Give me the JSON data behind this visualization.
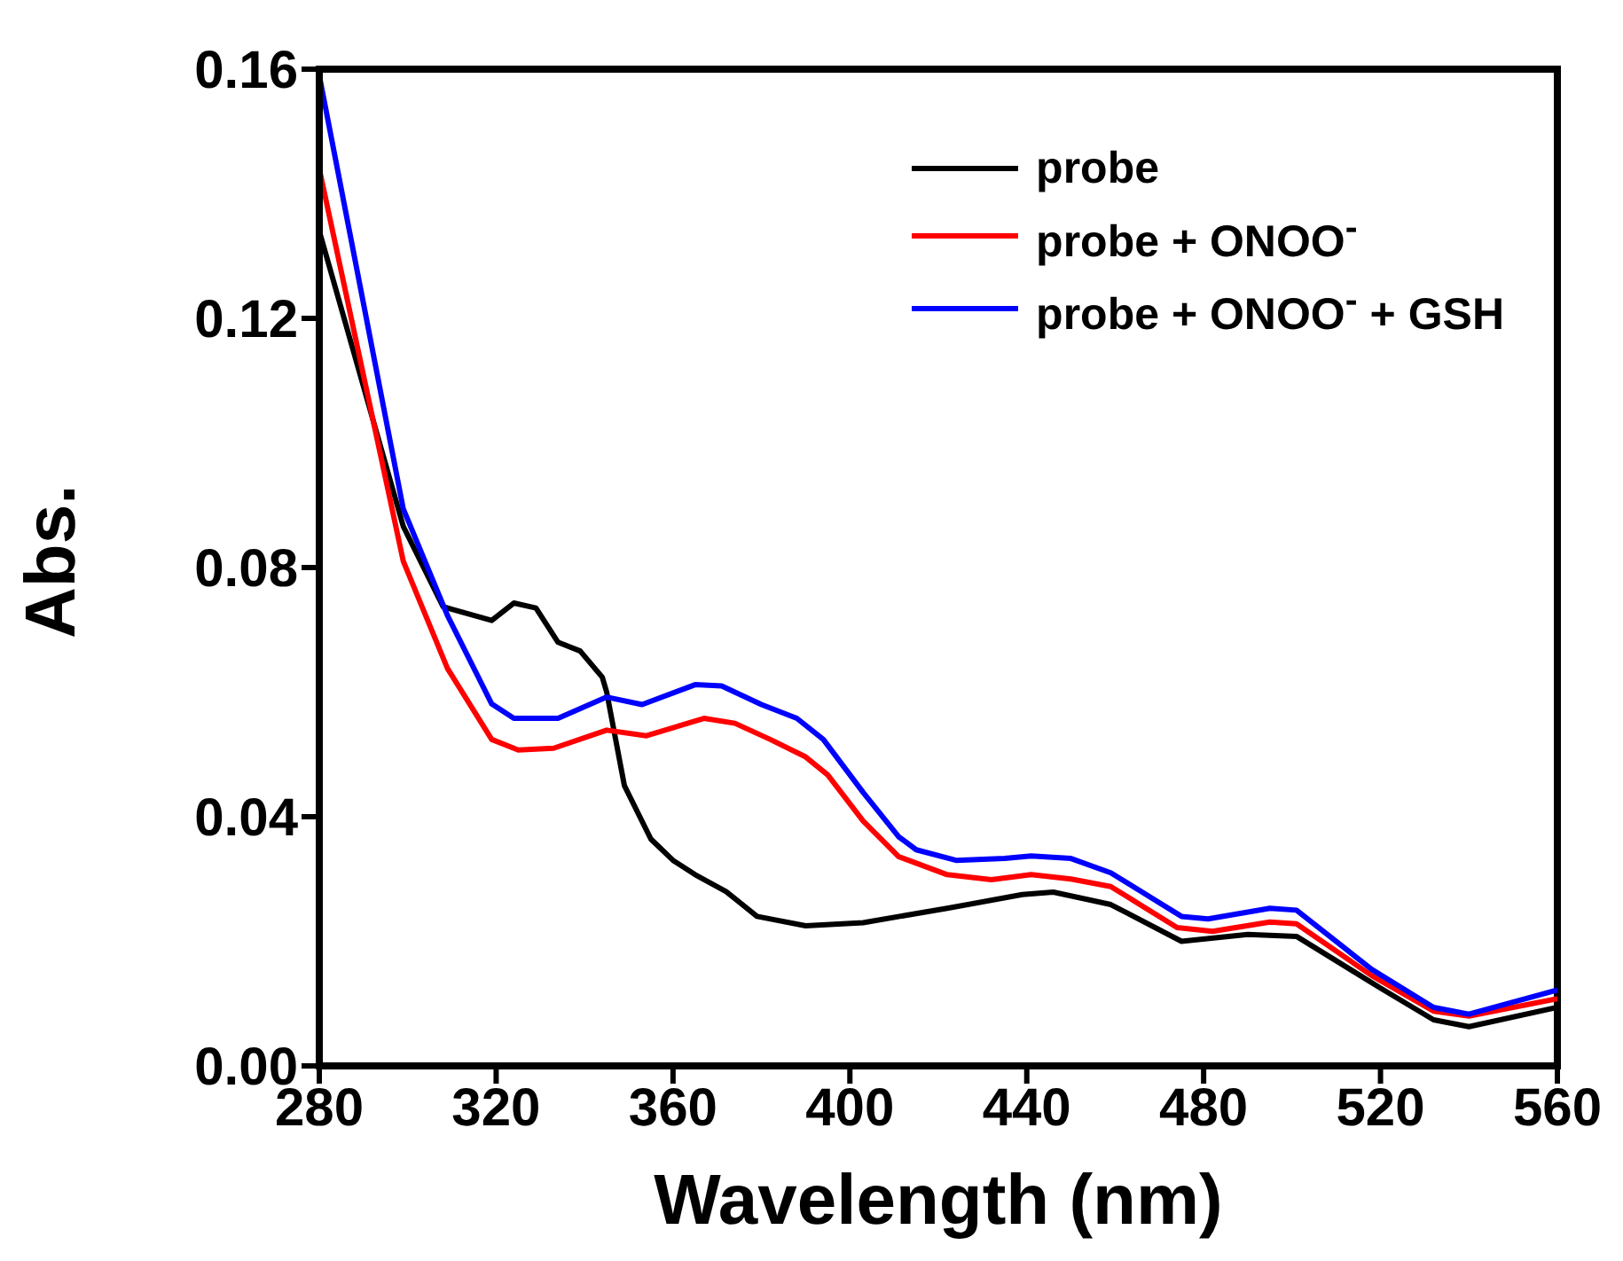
{
  "chart_data": {
    "type": "line",
    "xlabel": "Wavelength (nm)",
    "ylabel": "Abs.",
    "xlim": [
      280,
      560
    ],
    "xticks": [
      280,
      320,
      360,
      400,
      440,
      480,
      520,
      560
    ],
    "ylim": [
      0,
      0.16
    ],
    "yticks": [
      {
        "value": 0,
        "label": "0.00"
      },
      0.04,
      0.08,
      0.12,
      0.16
    ],
    "grid": false,
    "legend": "top right",
    "marker": "none",
    "line_style": "solid",
    "series": [
      {
        "name": "probe",
        "color": "#000000",
        "x": [
          280,
          299,
          308,
          319,
          324,
          329,
          334,
          339,
          344,
          345,
          349,
          355,
          360,
          365,
          372,
          379,
          390,
          403,
          422,
          439,
          446,
          459,
          475,
          490,
          501,
          520,
          532,
          540,
          560
        ],
        "values": [
          0.134,
          0.0866,
          0.0737,
          0.0715,
          0.0743,
          0.0735,
          0.068,
          0.0666,
          0.0624,
          0.06,
          0.045,
          0.0364,
          0.033,
          0.0307,
          0.028,
          0.024,
          0.0225,
          0.023,
          0.0253,
          0.0275,
          0.0279,
          0.0259,
          0.02,
          0.0211,
          0.0208,
          0.0125,
          0.0074,
          0.0063,
          0.0094
        ]
      },
      {
        "name": "probe + ONOO$^{-}$",
        "color": "#ff0000",
        "x": [
          280,
          299,
          309,
          319,
          325,
          333,
          345,
          354,
          367,
          374,
          382,
          390,
          395,
          403,
          411,
          422,
          432,
          441,
          450,
          459,
          474,
          482,
          495,
          501,
          518,
          532,
          540,
          560
        ],
        "values": [
          0.144,
          0.081,
          0.0638,
          0.0524,
          0.0507,
          0.051,
          0.0539,
          0.053,
          0.0558,
          0.055,
          0.0524,
          0.0496,
          0.0467,
          0.0393,
          0.0336,
          0.0307,
          0.0299,
          0.0307,
          0.03,
          0.0288,
          0.0222,
          0.0216,
          0.0231,
          0.0228,
          0.0145,
          0.0088,
          0.008,
          0.0108
        ]
      },
      {
        "name": "probe + ONOO$^{-}$ + GSH",
        "color": "#0000ff",
        "x": [
          280,
          299,
          309,
          319,
          324,
          334,
          345,
          353,
          365,
          371,
          380,
          388,
          394,
          403,
          411,
          415,
          424,
          435,
          441,
          450,
          459,
          475,
          481,
          495,
          501,
          518,
          532,
          540,
          560
        ],
        "values": [
          0.159,
          0.0894,
          0.0723,
          0.0581,
          0.0558,
          0.0558,
          0.0592,
          0.058,
          0.0612,
          0.061,
          0.058,
          0.0558,
          0.0524,
          0.0439,
          0.0368,
          0.0347,
          0.033,
          0.0333,
          0.0337,
          0.0333,
          0.031,
          0.024,
          0.0236,
          0.0253,
          0.025,
          0.0155,
          0.0094,
          0.0083,
          0.0122
        ]
      }
    ]
  }
}
